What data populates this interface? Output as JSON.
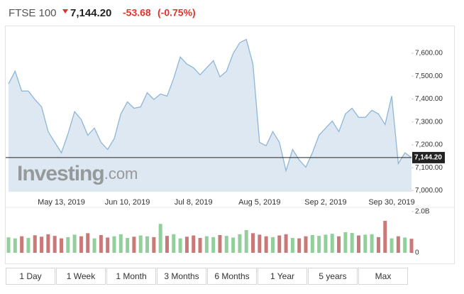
{
  "header": {
    "name": "FTSE 100",
    "price": "7,144.20",
    "change": "-53.68",
    "change_pct": "(-0.75%)"
  },
  "watermark": {
    "brand": "Investing",
    "suffix": ".com"
  },
  "chart_data": [
    {
      "type": "area",
      "color": "#8fb6d8",
      "fill": "#dde8f2",
      "categories": [
        null,
        null,
        null,
        null,
        null,
        null,
        null,
        null,
        "May 13, 2019",
        null,
        null,
        null,
        null,
        null,
        null,
        null,
        null,
        null,
        "Jun 10, 2019",
        null,
        null,
        null,
        null,
        null,
        null,
        null,
        null,
        null,
        "Jul 8, 2019",
        null,
        null,
        null,
        null,
        null,
        null,
        null,
        null,
        null,
        "Aug 5, 2019",
        null,
        null,
        null,
        null,
        null,
        null,
        null,
        null,
        null,
        "Sep 2, 2019",
        null,
        null,
        null,
        null,
        null,
        null,
        null,
        null,
        null,
        "Sep 30, 2019",
        null,
        null,
        null
      ],
      "values": [
        7466,
        7522,
        7435,
        7435,
        7398,
        7366,
        7258,
        7211,
        7165,
        7248,
        7345,
        7311,
        7242,
        7273,
        7211,
        7180,
        7227,
        7335,
        7388,
        7360,
        7366,
        7428,
        7398,
        7422,
        7413,
        7491,
        7584,
        7553,
        7537,
        7506,
        7537,
        7568,
        7497,
        7522,
        7599,
        7646,
        7661,
        7553,
        7211,
        7196,
        7258,
        7211,
        7087,
        7180,
        7134,
        7102,
        7165,
        7242,
        7273,
        7304,
        7258,
        7335,
        7360,
        7320,
        7320,
        7351,
        7335,
        7289,
        7413,
        7118,
        7165,
        7144.2
      ],
      "last_price": {
        "value": 7144.2,
        "label": "7,144.20"
      },
      "ylim": [
        6995,
        7715
      ],
      "yticks": [
        {
          "value": 7000,
          "label": "7,000.00"
        },
        {
          "value": 7100,
          "label": "7,100.00"
        },
        {
          "value": 7200,
          "label": "7,200.00"
        },
        {
          "value": 7300,
          "label": "7,300.00"
        },
        {
          "value": 7400,
          "label": "7,400.00"
        },
        {
          "value": 7500,
          "label": "7,500.00"
        },
        {
          "value": 7600,
          "label": "7,600.00"
        }
      ]
    },
    {
      "type": "bar",
      "up_color": "#93cf9c",
      "down_color": "#c97a78",
      "values": [
        0.75,
        0.7,
        0.8,
        0.72,
        0.85,
        0.78,
        0.9,
        0.82,
        0.7,
        0.76,
        0.88,
        0.8,
        0.95,
        0.7,
        0.86,
        0.74,
        0.8,
        0.9,
        0.72,
        0.78,
        0.84,
        0.8,
        0.76,
        1.4,
        0.82,
        0.9,
        0.7,
        0.78,
        0.84,
        0.72,
        0.8,
        0.76,
        0.86,
        0.82,
        0.74,
        0.9,
        1.1,
        0.95,
        0.88,
        0.8,
        0.76,
        0.84,
        0.9,
        0.72,
        0.7,
        0.8,
        0.86,
        0.82,
        0.88,
        0.92,
        0.8,
        1.0,
        0.96,
        0.84,
        0.88,
        0.9,
        0.76,
        1.55,
        0.7,
        0.8,
        0.74,
        0.68
      ],
      "ylim": [
        0,
        2.2
      ],
      "yticks": [
        0,
        {
          "value": 2,
          "label": "2.0B"
        }
      ]
    }
  ],
  "ranges": [
    "1 Day",
    "1 Week",
    "1 Month",
    "3 Months",
    "6 Months",
    "1 Year",
    "5 years",
    "Max"
  ]
}
